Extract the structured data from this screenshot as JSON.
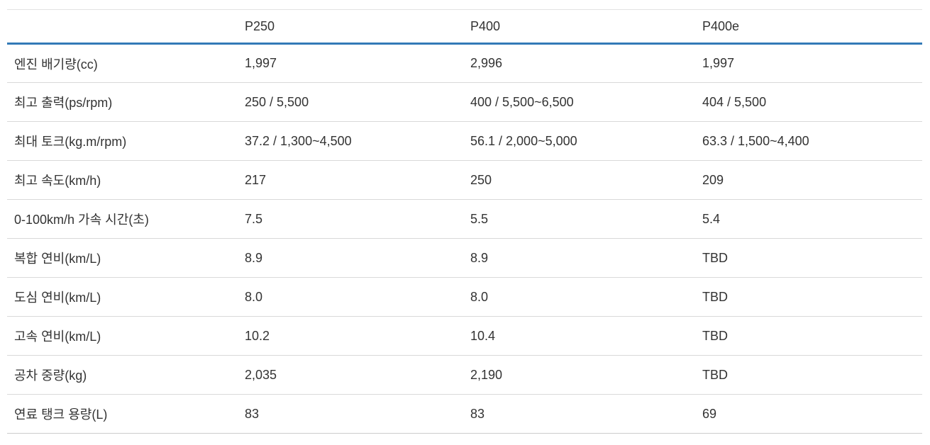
{
  "table": {
    "columns": {
      "label": "",
      "col1": "P250",
      "col2": "P400",
      "col3": "P400e"
    },
    "rows": [
      {
        "label": "엔진 배기량(cc)",
        "values": [
          "1,997",
          "2,996",
          "1,997"
        ]
      },
      {
        "label": "최고 출력(ps/rpm)",
        "values": [
          "250 / 5,500",
          "400 / 5,500~6,500",
          "404 / 5,500"
        ]
      },
      {
        "label": "최대 토크(kg.m/rpm)",
        "values": [
          "37.2 / 1,300~4,500",
          "56.1 / 2,000~5,000",
          "63.3 / 1,500~4,400"
        ]
      },
      {
        "label": "최고 속도(km/h)",
        "values": [
          "217",
          "250",
          "209"
        ]
      },
      {
        "label": "0-100km/h 가속 시간(초)",
        "values": [
          "7.5",
          "5.5",
          "5.4"
        ]
      },
      {
        "label": "복합 연비(km/L)",
        "values": [
          "8.9",
          "8.9",
          "TBD"
        ]
      },
      {
        "label": "도심 연비(km/L)",
        "values": [
          "8.0",
          "8.0",
          "TBD"
        ]
      },
      {
        "label": "고속 연비(km/L)",
        "values": [
          "10.2",
          "10.4",
          "TBD"
        ]
      },
      {
        "label": "공차 중량(kg)",
        "values": [
          "2,035",
          "2,190",
          "TBD"
        ]
      },
      {
        "label": "연료 탱크 용량(L)",
        "values": [
          "83",
          "83",
          "69"
        ]
      }
    ],
    "colors": {
      "header_underline": "#337ab7",
      "row_separator": "#d9d9d9",
      "top_border": "#e2e2e2",
      "text": "#333333"
    }
  }
}
